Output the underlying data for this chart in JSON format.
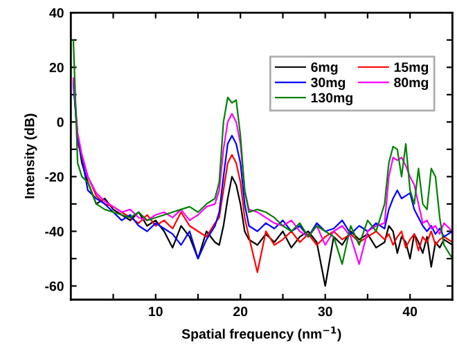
{
  "chart_data": {
    "type": "line",
    "xlabel": "Spatial frequency (nm$^{−1}$)",
    "ylabel": "Intensity (dB)",
    "xlim": [
      0,
      45
    ],
    "ylim": [
      -65,
      40
    ],
    "xticks": [
      {
        "value": 5,
        "label": null
      },
      10,
      {
        "value": 15,
        "label": null
      },
      20,
      {
        "value": 25,
        "label": null
      },
      30,
      {
        "value": 35,
        "label": null
      },
      40
    ],
    "yticks": [
      -60,
      {
        "value": -50,
        "label": null
      },
      -40,
      {
        "value": -30,
        "label": null
      },
      -20,
      {
        "value": -10,
        "label": null
      },
      0,
      {
        "value": 10,
        "label": null
      },
      20,
      {
        "value": 30,
        "label": null
      },
      40
    ],
    "grid": false,
    "legend": "top right",
    "marker": "none",
    "line_style": "solid",
    "x": [
      0.3,
      0.8,
      1.3,
      2,
      3,
      4,
      5,
      6,
      7,
      8,
      9,
      10,
      11,
      12,
      13,
      14,
      15,
      16,
      17,
      17.5,
      18,
      18.5,
      19,
      19.5,
      20,
      20.5,
      21,
      22,
      23,
      24,
      25,
      26,
      27,
      28,
      29,
      30,
      31,
      32,
      33,
      34,
      35,
      36,
      37,
      37.5,
      38,
      38.5,
      39,
      39.5,
      40,
      40.5,
      41,
      41.5,
      42,
      42.5,
      43,
      43.5,
      44,
      45
    ],
    "series": [
      {
        "name": "6mg",
        "color": "#000000",
        "values": [
          15,
          -5,
          -15,
          -22,
          -30,
          -28,
          -32,
          -34,
          -36,
          -33,
          -38,
          -36,
          -40,
          -46,
          -38,
          -42,
          -50,
          -40,
          -44,
          -45,
          -38,
          -28,
          -20,
          -23,
          -30,
          -40,
          -43,
          -45,
          -41,
          -44,
          -40,
          -46,
          -42,
          -40,
          -44,
          -60,
          -42,
          -45,
          -40,
          -43,
          -41,
          -46,
          -44,
          -38,
          -40,
          -48,
          -42,
          -44,
          -50,
          -41,
          -44,
          -48,
          -42,
          -53,
          -44,
          -46,
          -43,
          -45
        ]
      },
      {
        "name": "15mg",
        "color": "#ff0000",
        "values": [
          null,
          -8,
          -12,
          -20,
          -27,
          -30,
          -31,
          -33,
          -35,
          -37,
          -34,
          -38,
          -36,
          -39,
          -33,
          -38,
          -40,
          -42,
          -37,
          -35,
          -25,
          -15,
          -12,
          -15,
          -22,
          -35,
          -42,
          -55,
          -40,
          -45,
          -43,
          -40,
          -44,
          -41,
          -45,
          -42,
          -40,
          -43,
          -41,
          -44,
          -42,
          -40,
          -43,
          -41,
          -45,
          -42,
          -40,
          -46,
          -43,
          -41,
          -47,
          -42,
          -44,
          -40,
          -45,
          -43,
          -42,
          -44
        ]
      },
      {
        "name": "30mg",
        "color": "#0000ff",
        "values": [
          14,
          -6,
          -13,
          -25,
          -28,
          -30,
          -33,
          -36,
          -34,
          -38,
          -40,
          -37,
          -39,
          -41,
          -45,
          -40,
          -50,
          -43,
          -38,
          -33,
          -20,
          -8,
          -5,
          -8,
          -15,
          -30,
          -38,
          -40,
          -37,
          -39,
          -36,
          -40,
          -38,
          -42,
          -37,
          -40,
          -39,
          -36,
          -41,
          -38,
          -40,
          -37,
          -39,
          -32,
          -28,
          -25,
          -28,
          -27,
          -26,
          -32,
          -35,
          -38,
          -40,
          -38,
          -41,
          -39,
          -42,
          -40
        ]
      },
      {
        "name": "80mg",
        "color": "#ff00ff",
        "values": [
          16,
          -4,
          -12,
          -20,
          -26,
          -29,
          -31,
          -33,
          -32,
          -35,
          -36,
          -34,
          -33,
          -35,
          -32,
          -36,
          -34,
          -31,
          -30,
          -25,
          -10,
          0,
          3,
          0,
          -8,
          -25,
          -32,
          -33,
          -35,
          -37,
          -38,
          -36,
          -40,
          -42,
          -38,
          -45,
          -40,
          -38,
          -42,
          -52,
          -40,
          -38,
          -37,
          -20,
          -13,
          -14,
          -13,
          -16,
          -20,
          -23,
          -30,
          -37,
          -36,
          -39,
          -38,
          -41,
          -37,
          -40
        ]
      },
      {
        "name": "130mg",
        "color": "#008000",
        "values": [
          30,
          -15,
          -20,
          -22,
          -30,
          -32,
          -33,
          -34,
          -35,
          -33,
          -36,
          -35,
          -34,
          -33,
          -32,
          -31,
          -33,
          -30,
          -28,
          -22,
          0,
          9,
          7,
          8,
          -5,
          -25,
          -33,
          -32,
          -33,
          -35,
          -38,
          -40,
          -37,
          -42,
          -38,
          -40,
          -42,
          -52,
          -38,
          -45,
          -36,
          -40,
          -30,
          -15,
          -9,
          -10,
          -20,
          -8,
          -25,
          -30,
          -17,
          -30,
          -32,
          -17,
          -20,
          -35,
          -45,
          -50
        ]
      }
    ]
  }
}
